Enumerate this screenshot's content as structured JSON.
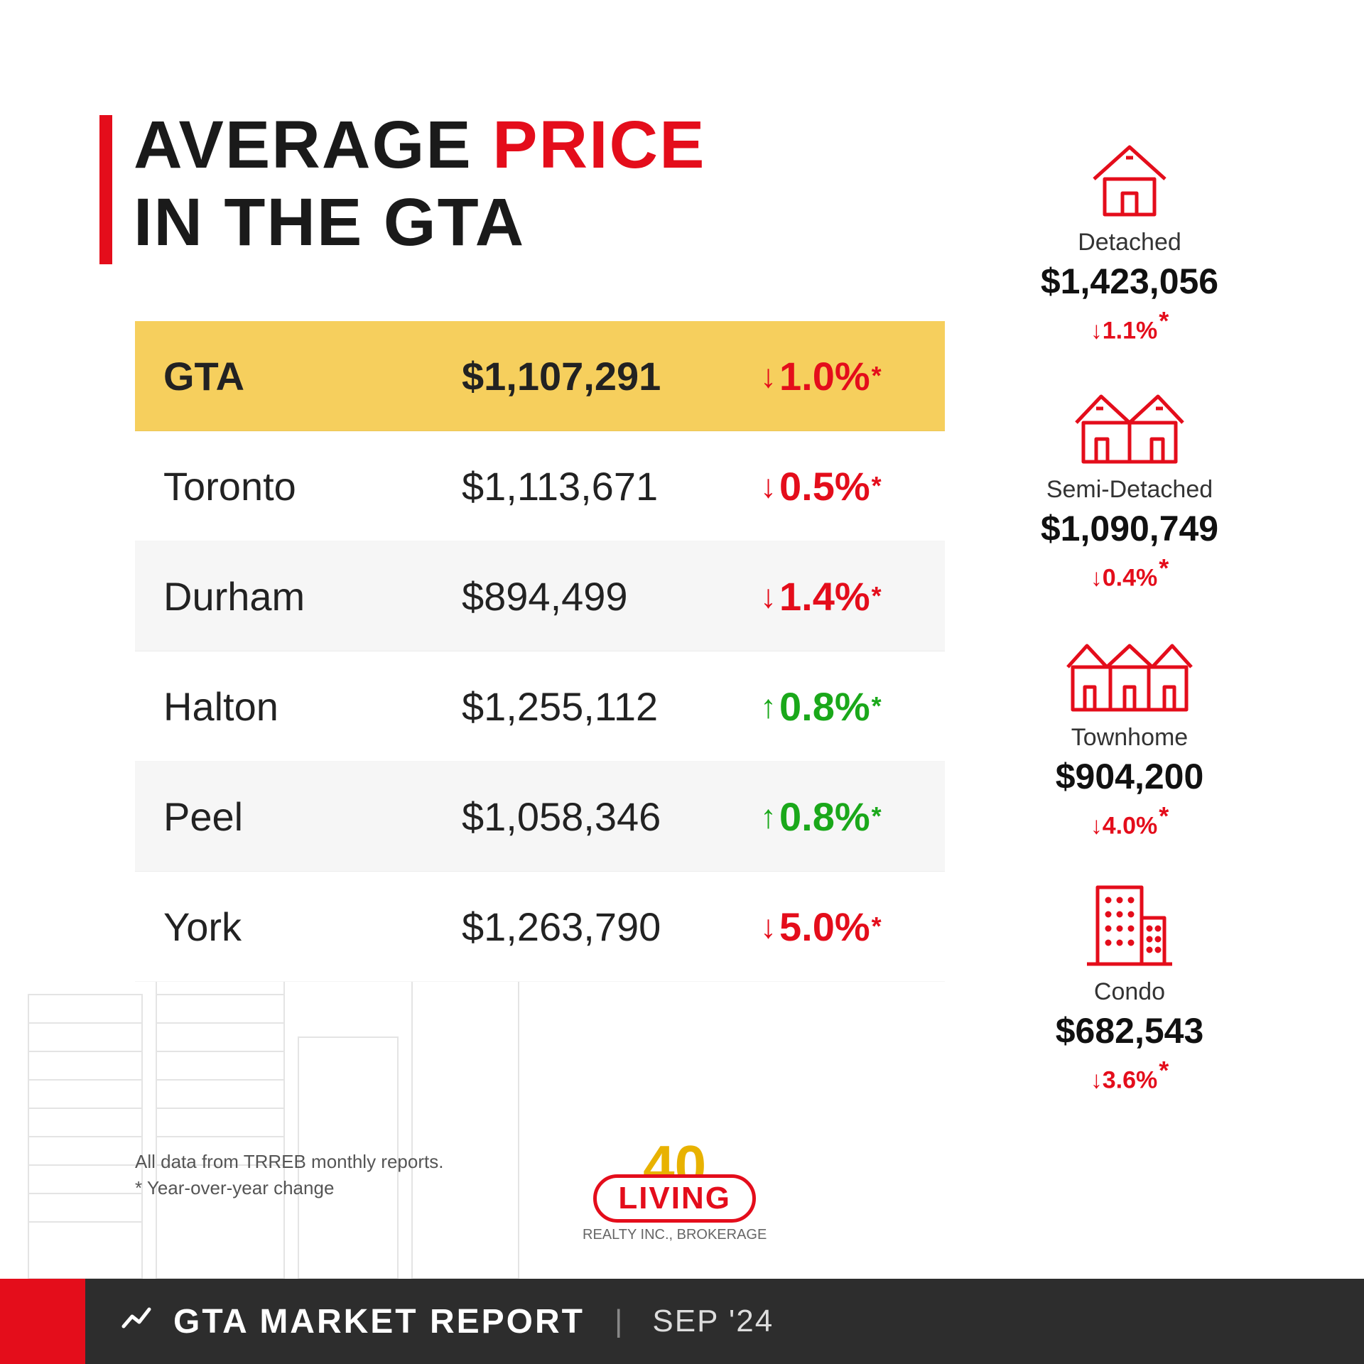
{
  "title": {
    "line1_a": "AVERAGE ",
    "line1_b": "PRICE",
    "line2": "IN THE GTA"
  },
  "colors": {
    "accent_red": "#e40d1b",
    "accent_green": "#1aa81a",
    "highlight_row_bg": "#f6cf5d",
    "alt_row_bg": "#f6f6f6",
    "plain_row_bg": "#ffffff",
    "text_dark": "#1a1a1a",
    "footer_bg": "#2d2d2d"
  },
  "table": {
    "rows": [
      {
        "region": "GTA",
        "price": "$1,107,291",
        "dir": "down",
        "change": "1.0%",
        "highlight": true
      },
      {
        "region": "Toronto",
        "price": "$1,113,671",
        "dir": "down",
        "change": "0.5%",
        "highlight": false
      },
      {
        "region": "Durham",
        "price": "$894,499",
        "dir": "down",
        "change": "1.4%",
        "highlight": false
      },
      {
        "region": "Halton",
        "price": "$1,255,112",
        "dir": "up",
        "change": "0.8%",
        "highlight": false
      },
      {
        "region": "Peel",
        "price": "$1,058,346",
        "dir": "up",
        "change": "0.8%",
        "highlight": false
      },
      {
        "region": "York",
        "price": "$1,263,790",
        "dir": "down",
        "change": "5.0%",
        "highlight": false
      }
    ]
  },
  "property_types": [
    {
      "label": "Detached",
      "price": "$1,423,056",
      "dir": "down",
      "change": "1.1%",
      "icon": "house"
    },
    {
      "label": "Semi-Detached",
      "price": "$1,090,749",
      "dir": "down",
      "change": "0.4%",
      "icon": "semi"
    },
    {
      "label": "Townhome",
      "price": "$904,200",
      "dir": "down",
      "change": "4.0%",
      "icon": "townhome"
    },
    {
      "label": "Condo",
      "price": "$682,543",
      "dir": "down",
      "change": "3.6%",
      "icon": "condo"
    }
  ],
  "footnote": {
    "line1": "All data from TRREB monthly reports.",
    "line2": "* Year-over-year change"
  },
  "logo": {
    "forty": "40",
    "brand": "LIVING",
    "sub": "REALTY INC., BROKERAGE"
  },
  "footer": {
    "title": "GTA MARKET REPORT",
    "sep": "|",
    "date": "SEP '24"
  },
  "glyphs": {
    "up": "↑",
    "down": "↓",
    "ast": "*",
    "trend": "⁓"
  }
}
